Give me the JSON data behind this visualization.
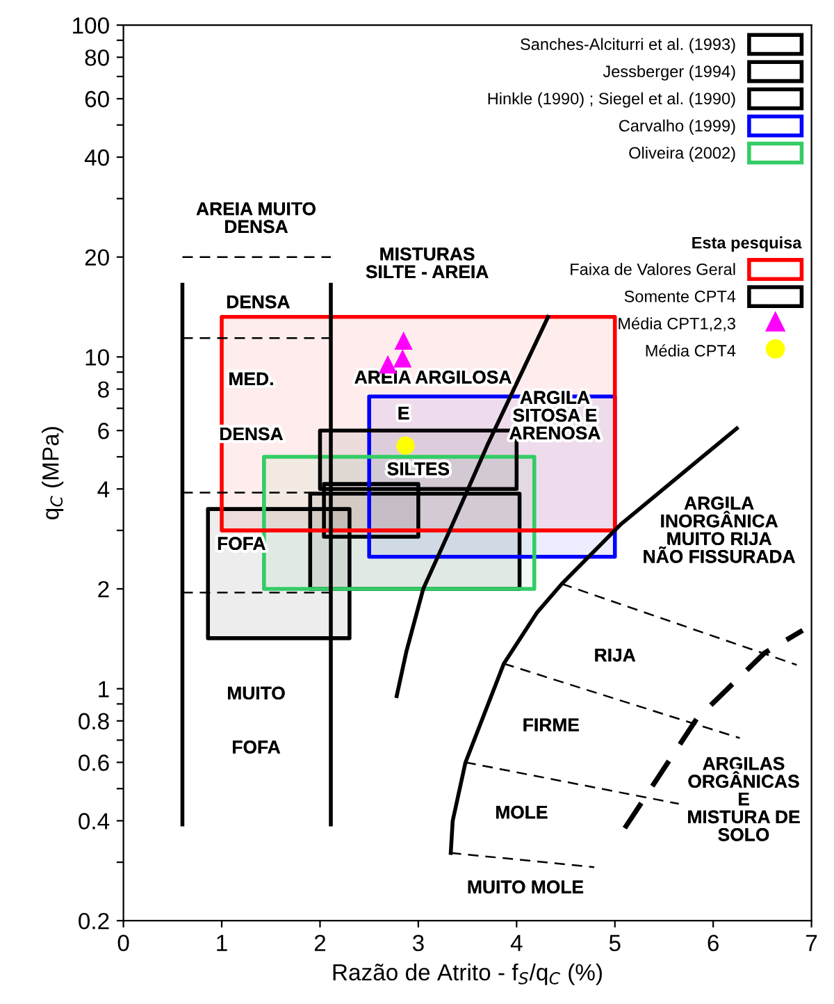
{
  "chart_data": {
    "type": "line",
    "xlabel": "Razão de Atrito - f$_{S}$/q$_{C}$ (%)",
    "ylabel": "q$_{C}$ (MPa)",
    "log": "y",
    "xlim": [
      0,
      7
    ],
    "xticks": [
      0,
      1,
      2,
      3,
      4,
      5,
      6,
      7
    ],
    "ylim": [
      0.2,
      100
    ],
    "yticks": [
      0.2,
      {
        "value": 0.3,
        "label": null
      },
      0.4,
      {
        "value": 0.5,
        "label": null
      },
      0.6,
      {
        "value": 0.7,
        "label": null
      },
      0.8,
      {
        "value": 0.9,
        "label": null
      },
      1,
      2,
      {
        "value": 3,
        "label": null
      },
      4,
      {
        "value": 5,
        "label": null
      },
      6,
      {
        "value": 7,
        "label": null
      },
      8,
      {
        "value": 9,
        "label": null
      },
      10,
      20,
      {
        "value": 30,
        "label": null
      },
      40,
      {
        "value": 50,
        "label": null
      },
      60,
      {
        "value": 70,
        "label": null
      },
      80,
      {
        "value": 90,
        "label": null
      },
      100
    ],
    "grid": false,
    "legend": "top right",
    "legend_title": "Esta pesquisa",
    "series": [
      {
        "name": "Sanches-Alciturri et al. (1993)",
        "color": "#000000",
        "x": [
          0.86,
          2.3
        ],
        "values": [
          null,
          null
        ],
        "lower": [
          1.42,
          1.42
        ],
        "upper": [
          3.48,
          3.48
        ],
        "marker": "none"
      },
      {
        "name": "Jessberger (1994)",
        "color": "#000000",
        "x": [
          2.04,
          3.0
        ],
        "values": [
          null,
          null
        ],
        "lower": [
          2.87,
          2.87
        ],
        "upper": [
          4.14,
          4.14
        ],
        "marker": "none"
      },
      {
        "name": "Hinkle (1990) ; Siegel et al. (1990)",
        "color": "#000000",
        "x": [
          1.9,
          4.03
        ],
        "values": [
          null,
          null
        ],
        "lower": [
          2.0,
          2.0
        ],
        "upper": [
          3.87,
          3.87
        ],
        "marker": "none"
      },
      {
        "name": "Carvalho (1999)",
        "color": "#0000ff",
        "x": [
          2.5,
          5.0
        ],
        "values": [
          null,
          null
        ],
        "lower": [
          2.5,
          2.5
        ],
        "upper": [
          7.6,
          7.6
        ],
        "marker": "none"
      },
      {
        "name": "Oliveira (2002)",
        "color": "#33cc66",
        "x": [
          1.43,
          4.18
        ],
        "values": [
          null,
          null
        ],
        "lower": [
          2.0,
          2.0
        ],
        "upper": [
          5.0,
          5.0
        ],
        "marker": "none"
      },
      {
        "name": "Faixa de Valores Geral",
        "color": "#ff0000",
        "x": [
          1.0,
          5.0
        ],
        "values": [
          null,
          null
        ],
        "lower": [
          3.0,
          3.0
        ],
        "upper": [
          13.2,
          13.2
        ],
        "marker": "none"
      },
      {
        "name": "Somente CPT4",
        "color": "#000000",
        "x": [
          2.0,
          4.0
        ],
        "values": [
          null,
          null
        ],
        "lower": [
          4.0,
          4.0
        ],
        "upper": [
          6.0,
          6.0
        ],
        "marker": "none"
      },
      {
        "name": "Média CPT1,2,3",
        "type": "scatter",
        "color": "#ff00ff",
        "x": [
          2.85,
          2.84,
          2.69
        ],
        "values": [
          11.2,
          9.9,
          9.5
        ],
        "marker": "triangle"
      },
      {
        "name": "Média CPT4",
        "type": "scatter",
        "color": "#ffff00",
        "x": [
          2.87
        ],
        "values": [
          5.4
        ],
        "marker": "circle"
      },
      {
        "color": "#000000",
        "x": [
          0.6,
          0.6
        ],
        "values": [
          0.39,
          16.5
        ],
        "marker": "none",
        "line_style": "solid"
      },
      {
        "color": "#000000",
        "x": [
          2.11,
          2.11
        ],
        "values": [
          0.39,
          16.5
        ],
        "marker": "none",
        "line_style": "solid"
      },
      {
        "color": "#000000",
        "x": [
          0.6,
          2.11
        ],
        "values": [
          20,
          20
        ],
        "marker": "none",
        "line_style": "dashed"
      },
      {
        "color": "#000000",
        "x": [
          0.6,
          2.11
        ],
        "values": [
          11.4,
          11.4
        ],
        "marker": "none",
        "line_style": "dashed"
      },
      {
        "color": "#000000",
        "x": [
          0.6,
          2.11
        ],
        "values": [
          3.9,
          3.9
        ],
        "marker": "none",
        "line_style": "dashed"
      },
      {
        "color": "#000000",
        "x": [
          0.6,
          2.11
        ],
        "values": [
          1.95,
          1.95
        ],
        "marker": "none",
        "line_style": "dashed"
      },
      {
        "color": "#000000",
        "x": [
          2.78,
          2.88,
          3.05,
          3.32,
          3.7,
          4.32
        ],
        "values": [
          0.95,
          1.3,
          2.0,
          3.0,
          5.4,
          13.2
        ],
        "marker": "none",
        "line_style": "solid"
      },
      {
        "color": "#000000",
        "x": [
          3.33,
          3.35,
          3.48,
          3.87,
          4.21,
          4.46,
          5.06,
          6.24
        ],
        "values": [
          0.32,
          0.4,
          0.6,
          1.19,
          1.7,
          2.07,
          3.13,
          6.09
        ],
        "marker": "none",
        "line_style": "solid"
      },
      {
        "color": "#000000",
        "x": [
          5.1,
          5.83,
          6.52,
          6.91
        ],
        "values": [
          0.38,
          0.81,
          1.28,
          1.5
        ],
        "marker": "none",
        "line_style": "dashed"
      },
      {
        "color": "#000000",
        "x": [
          4.46,
          6.85
        ],
        "values": [
          2.07,
          1.18
        ],
        "marker": "none",
        "line_style": "dashed"
      },
      {
        "color": "#000000",
        "x": [
          3.87,
          6.27
        ],
        "values": [
          1.19,
          0.71
        ],
        "marker": "none",
        "line_style": "dashed"
      },
      {
        "color": "#000000",
        "x": [
          3.48,
          5.65
        ],
        "values": [
          0.6,
          0.45
        ],
        "marker": "none",
        "line_style": "dashed"
      },
      {
        "color": "#000000",
        "x": [
          3.33,
          4.79
        ],
        "values": [
          0.32,
          0.29
        ],
        "marker": "none",
        "line_style": "dashed"
      }
    ],
    "annotations": [
      "AREIA MUITO\nDENSA",
      "DENSA",
      "MISTURAS\nSILTE - AREIA",
      "AREIA ARGILOSA",
      "MED.",
      "DENSA",
      "E",
      "SILTES",
      "ARGILA\nSITOSA E\nARENOSA",
      "FOFA",
      "ARGILA\nINORGÂNICA\nMUITO RIJA\nNÃO FISSURADA",
      "RIJA",
      "MUITO",
      "FOFA",
      "FIRME",
      "MOLE",
      "MUITO MOLE",
      "ARGILAS\nORGÂNICAS\nE\nMISTURA DE\nSOLO"
    ]
  }
}
